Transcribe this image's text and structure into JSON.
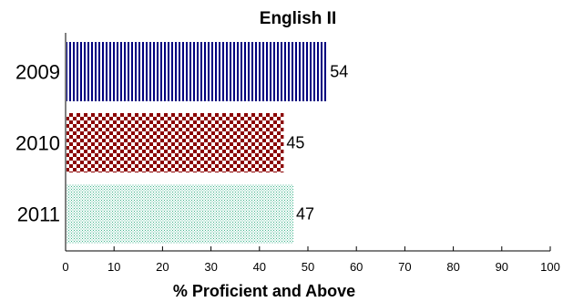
{
  "chart_data": {
    "type": "bar",
    "orientation": "horizontal",
    "title": "English II",
    "xlabel": "% Proficient and Above",
    "ylabel": "",
    "xlim": [
      0,
      100
    ],
    "x_ticks": [
      0,
      10,
      20,
      30,
      40,
      50,
      60,
      70,
      80,
      90,
      100
    ],
    "categories": [
      "2009",
      "2010",
      "2011"
    ],
    "values": [
      54,
      45,
      47
    ],
    "bar_styles": [
      {
        "pattern": "vertical-stripes",
        "color": "#000080"
      },
      {
        "pattern": "checkerboard",
        "color": "#8b0000"
      },
      {
        "pattern": "dots",
        "color": "#3cb38a"
      }
    ],
    "grid": false,
    "legend": "none"
  }
}
